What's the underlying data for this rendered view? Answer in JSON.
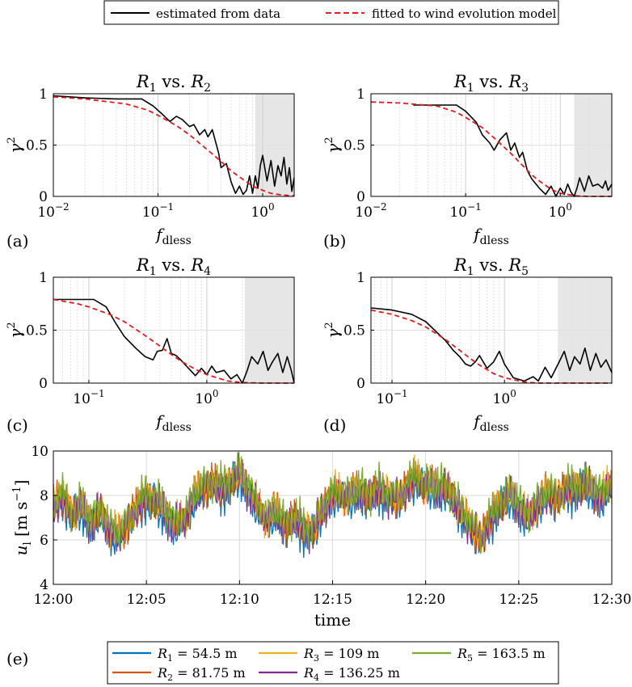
{
  "top_legend": {
    "items": [
      {
        "label": "estimated from data",
        "color": "#000000",
        "dash": "solid"
      },
      {
        "label": "fitted to wind evolution model",
        "color": "#e41a1c",
        "dash": "dashed"
      }
    ]
  },
  "panel_labels": [
    "(a)",
    "(b)",
    "(c)",
    "(d)",
    "(e)"
  ],
  "colors": {
    "estimated": "#000000",
    "fitted": "#e41a1c",
    "shade": "#e6e6e6",
    "grid": "#d9d9d9"
  },
  "chart_data": [
    {
      "id": "a",
      "type": "line",
      "title_main": "R",
      "title_sub1": "1",
      "title_mid": " vs. ",
      "title_main2": "R",
      "title_sub2": "2",
      "xlabel_main": "f",
      "xlabel_sub": "dless",
      "ylabel_main": "γ",
      "ylabel_sup": "2",
      "xscale": "log",
      "xlim": [
        0.01,
        2.0
      ],
      "ylim": [
        0,
        1
      ],
      "xtick_values": [
        0.01,
        0.1,
        1
      ],
      "xticks": [
        {
          "base": "10",
          "exp": "−2"
        },
        {
          "base": "10",
          "exp": "−1"
        },
        {
          "base": "10",
          "exp": "0"
        }
      ],
      "yticks": [
        "0",
        "0.5",
        "1"
      ],
      "ytick_values": [
        0,
        0.5,
        1
      ],
      "shaded_from": 0.85,
      "series": [
        {
          "name": "estimated from data",
          "x": [
            0.01,
            0.02,
            0.04,
            0.07,
            0.09,
            0.11,
            0.13,
            0.15,
            0.17,
            0.2,
            0.22,
            0.25,
            0.28,
            0.3,
            0.33,
            0.38,
            0.4,
            0.45,
            0.5,
            0.55,
            0.6,
            0.65,
            0.7,
            0.75,
            0.8,
            0.85,
            0.9,
            0.95,
            1.0,
            1.1,
            1.2,
            1.3,
            1.4,
            1.5,
            1.6,
            1.7,
            1.8,
            1.9,
            2.0
          ],
          "y": [
            0.98,
            0.96,
            0.95,
            0.95,
            0.88,
            0.8,
            0.73,
            0.78,
            0.75,
            0.68,
            0.7,
            0.6,
            0.65,
            0.58,
            0.65,
            0.42,
            0.28,
            0.32,
            0.14,
            0.03,
            0.1,
            0.02,
            0.06,
            0.2,
            0.03,
            0.2,
            0.08,
            0.3,
            0.4,
            0.15,
            0.35,
            0.1,
            0.3,
            0.2,
            0.38,
            0.12,
            0.28,
            0.05,
            0.18
          ]
        },
        {
          "name": "fitted to wind evolution model",
          "x": [
            0.01,
            0.02,
            0.05,
            0.08,
            0.1,
            0.15,
            0.2,
            0.3,
            0.4,
            0.5,
            0.6,
            0.8,
            1.0,
            1.2,
            1.5,
            2.0
          ],
          "y": [
            0.97,
            0.95,
            0.9,
            0.84,
            0.79,
            0.69,
            0.6,
            0.45,
            0.34,
            0.25,
            0.19,
            0.1,
            0.06,
            0.03,
            0.015,
            0.005
          ]
        }
      ]
    },
    {
      "id": "b",
      "type": "line",
      "title_main": "R",
      "title_sub1": "1",
      "title_mid": " vs. ",
      "title_main2": "R",
      "title_sub2": "3",
      "xlabel_main": "f",
      "xlabel_sub": "dless",
      "ylabel_main": "γ",
      "ylabel_sup": "2",
      "xscale": "log",
      "xlim": [
        0.01,
        3.5
      ],
      "ylim": [
        0,
        1
      ],
      "xtick_values": [
        0.01,
        0.1,
        1
      ],
      "xticks": [
        {
          "base": "10",
          "exp": "−2"
        },
        {
          "base": "10",
          "exp": "−1"
        },
        {
          "base": "10",
          "exp": "0"
        }
      ],
      "yticks": [
        "0",
        "0.5",
        "1"
      ],
      "ytick_values": [
        0,
        0.5,
        1
      ],
      "shaded_from": 1.4,
      "series": [
        {
          "name": "estimated from data",
          "x": [
            0.028,
            0.05,
            0.08,
            0.1,
            0.13,
            0.15,
            0.18,
            0.2,
            0.23,
            0.27,
            0.3,
            0.33,
            0.37,
            0.4,
            0.45,
            0.5,
            0.6,
            0.7,
            0.8,
            0.9,
            1.0,
            1.1,
            1.2,
            1.3,
            1.4,
            1.5,
            1.6,
            1.8,
            2.0,
            2.2,
            2.5,
            2.8,
            3.0,
            3.2,
            3.5
          ],
          "y": [
            0.89,
            0.89,
            0.89,
            0.83,
            0.72,
            0.6,
            0.52,
            0.45,
            0.55,
            0.62,
            0.45,
            0.52,
            0.38,
            0.43,
            0.25,
            0.17,
            0.08,
            0.02,
            0.1,
            0.0,
            0.08,
            0.02,
            0.12,
            0.04,
            0.0,
            0.08,
            0.18,
            0.05,
            0.2,
            0.1,
            0.12,
            0.08,
            0.15,
            0.06,
            0.12
          ]
        },
        {
          "name": "fitted to wind evolution model",
          "x": [
            0.01,
            0.02,
            0.05,
            0.08,
            0.1,
            0.15,
            0.2,
            0.3,
            0.4,
            0.5,
            0.6,
            0.8,
            1.0,
            1.5,
            2.0,
            3.5
          ],
          "y": [
            0.92,
            0.91,
            0.88,
            0.82,
            0.77,
            0.67,
            0.57,
            0.42,
            0.3,
            0.21,
            0.15,
            0.07,
            0.03,
            0.005,
            0.0,
            0.0
          ]
        }
      ]
    },
    {
      "id": "c",
      "type": "line",
      "title_main": "R",
      "title_sub1": "1",
      "title_mid": " vs. ",
      "title_main2": "R",
      "title_sub2": "4",
      "xlabel_main": "f",
      "xlabel_sub": "dless",
      "ylabel_main": "γ",
      "ylabel_sup": "2",
      "xscale": "log",
      "xlim": [
        0.05,
        5.5
      ],
      "ylim": [
        0,
        1
      ],
      "xtick_values": [
        0.1,
        1
      ],
      "xticks": [
        {
          "base": "10",
          "exp": "−1"
        },
        {
          "base": "10",
          "exp": "0"
        }
      ],
      "yticks": [
        "0",
        "0.5",
        "1"
      ],
      "ytick_values": [
        0,
        0.5,
        1
      ],
      "shaded_from": 2.1,
      "series": [
        {
          "name": "estimated from data",
          "x": [
            0.05,
            0.08,
            0.11,
            0.14,
            0.17,
            0.2,
            0.25,
            0.3,
            0.35,
            0.38,
            0.42,
            0.46,
            0.5,
            0.55,
            0.6,
            0.7,
            0.8,
            0.9,
            1.0,
            1.1,
            1.2,
            1.4,
            1.6,
            1.8,
            2.0,
            2.2,
            2.4,
            2.7,
            3.0,
            3.3,
            3.6,
            4.0,
            4.4,
            4.8,
            5.2,
            5.5
          ],
          "y": [
            0.79,
            0.79,
            0.79,
            0.72,
            0.56,
            0.44,
            0.33,
            0.25,
            0.22,
            0.3,
            0.31,
            0.42,
            0.28,
            0.26,
            0.22,
            0.14,
            0.07,
            0.14,
            0.08,
            0.16,
            0.1,
            0.12,
            0.04,
            0.08,
            0.0,
            0.12,
            0.25,
            0.18,
            0.3,
            0.12,
            0.2,
            0.28,
            0.1,
            0.25,
            0.12,
            0.0
          ]
        },
        {
          "name": "fitted to wind evolution model",
          "x": [
            0.05,
            0.08,
            0.1,
            0.15,
            0.2,
            0.3,
            0.4,
            0.5,
            0.6,
            0.8,
            1.0,
            1.5,
            2.0,
            3.0,
            5.5
          ],
          "y": [
            0.79,
            0.75,
            0.72,
            0.65,
            0.58,
            0.45,
            0.35,
            0.27,
            0.21,
            0.13,
            0.08,
            0.02,
            0.005,
            0.0,
            0.0
          ]
        }
      ]
    },
    {
      "id": "d",
      "type": "line",
      "title_main": "R",
      "title_sub1": "1",
      "title_mid": " vs. ",
      "title_main2": "R",
      "title_sub2": "5",
      "xlabel_main": "f",
      "xlabel_sub": "dless",
      "ylabel_main": "γ",
      "ylabel_sup": "2",
      "xscale": "log",
      "xlim": [
        0.065,
        9.0
      ],
      "ylim": [
        0,
        1
      ],
      "xtick_values": [
        0.1,
        1
      ],
      "xticks": [
        {
          "base": "10",
          "exp": "−1"
        },
        {
          "base": "10",
          "exp": "0"
        }
      ],
      "yticks": [
        "0",
        "0.5",
        "1"
      ],
      "ytick_values": [
        0,
        0.5,
        1
      ],
      "shaded_from": 3.0,
      "series": [
        {
          "name": "estimated from data",
          "x": [
            0.065,
            0.1,
            0.15,
            0.2,
            0.25,
            0.3,
            0.35,
            0.4,
            0.45,
            0.5,
            0.55,
            0.6,
            0.7,
            0.8,
            0.9,
            1.0,
            1.2,
            1.5,
            1.8,
            2.0,
            2.3,
            2.6,
            3.0,
            3.4,
            3.8,
            4.2,
            4.7,
            5.2,
            5.8,
            6.5,
            7.2,
            8.0,
            9.0
          ],
          "y": [
            0.71,
            0.69,
            0.65,
            0.58,
            0.48,
            0.4,
            0.31,
            0.25,
            0.18,
            0.16,
            0.2,
            0.26,
            0.14,
            0.2,
            0.3,
            0.18,
            0.05,
            0.02,
            0.06,
            0.02,
            0.15,
            0.05,
            0.18,
            0.3,
            0.12,
            0.25,
            0.18,
            0.33,
            0.12,
            0.28,
            0.15,
            0.22,
            0.1
          ]
        },
        {
          "name": "fitted to wind evolution model",
          "x": [
            0.065,
            0.1,
            0.15,
            0.2,
            0.3,
            0.4,
            0.5,
            0.6,
            0.8,
            1.0,
            1.5,
            2.0,
            3.0,
            9.0
          ],
          "y": [
            0.69,
            0.65,
            0.59,
            0.53,
            0.41,
            0.31,
            0.23,
            0.17,
            0.09,
            0.05,
            0.01,
            0.0,
            0.0,
            0.0
          ]
        }
      ]
    },
    {
      "id": "e",
      "type": "line",
      "xlabel": "time",
      "ylabel_main": "u",
      "ylabel_sub": "l",
      "ylabel_unit": " [m s",
      "ylabel_sup": "−1",
      "ylabel_end": "]",
      "xlim": [
        0,
        30
      ],
      "ylim": [
        4,
        10
      ],
      "x_unit": "minutes after 12:00",
      "xticks": [
        "12:00",
        "12:05",
        "12:10",
        "12:15",
        "12:20",
        "12:25",
        "12:30"
      ],
      "xtick_values": [
        0,
        5,
        10,
        15,
        20,
        25,
        30
      ],
      "yticks": [
        "4",
        "6",
        "8",
        "10"
      ],
      "ytick_values": [
        4,
        6,
        8,
        10
      ],
      "base_series": {
        "x": [
          0,
          0.5,
          1,
          1.5,
          2,
          2.5,
          3,
          3.5,
          4,
          4.5,
          5,
          5.5,
          6,
          6.5,
          7,
          7.5,
          8,
          8.5,
          9,
          9.5,
          10,
          10.5,
          11,
          11.5,
          12,
          12.5,
          13,
          13.5,
          14,
          14.5,
          15,
          15.5,
          16,
          16.5,
          17,
          17.5,
          18,
          18.5,
          19,
          19.5,
          20,
          20.5,
          21,
          21.5,
          22,
          22.5,
          23,
          23.5,
          24,
          24.5,
          25,
          25.5,
          26,
          26.5,
          27,
          27.5,
          28,
          28.5,
          29,
          29.5,
          30
        ],
        "y": [
          7.6,
          7.9,
          7.2,
          7.5,
          6.8,
          7.3,
          6.5,
          6.2,
          6.8,
          7.4,
          8.0,
          7.7,
          7.3,
          6.7,
          6.9,
          7.8,
          8.4,
          8.5,
          8.3,
          8.6,
          9.0,
          8.3,
          7.4,
          7.0,
          7.2,
          6.7,
          6.9,
          6.5,
          6.4,
          7.5,
          8.0,
          8.1,
          7.9,
          8.3,
          7.9,
          8.3,
          8.0,
          7.8,
          8.4,
          8.8,
          8.5,
          8.3,
          8.5,
          7.8,
          7.2,
          6.5,
          6.1,
          6.9,
          7.7,
          8.0,
          7.6,
          7.0,
          7.6,
          8.1,
          7.9,
          8.2,
          8.3,
          8.6,
          8.2,
          8.0,
          8.5
        ]
      },
      "series": [
        {
          "name": "R1 = 54.5 m",
          "name_main": "R",
          "name_sub": "1",
          "name_rest": " = 54.5 m",
          "color": "#0072bd",
          "offset": -0.25
        },
        {
          "name": "R2 = 81.75 m",
          "name_main": "R",
          "name_sub": "2",
          "name_rest": " = 81.75 m",
          "color": "#d95319",
          "offset": 0.0
        },
        {
          "name": "R3 = 109 m",
          "name_main": "R",
          "name_sub": "3",
          "name_rest": " = 109 m",
          "color": "#edb120",
          "offset": 0.05
        },
        {
          "name": "R4 = 136.25 m",
          "name_main": "R",
          "name_sub": "4",
          "name_rest": " = 136.25 m",
          "color": "#7e2f8e",
          "offset": -0.05
        },
        {
          "name": "R5 = 163.5 m",
          "name_main": "R",
          "name_sub": "5",
          "name_rest": " = 163.5 m",
          "color": "#77ac30",
          "offset": 0.15
        }
      ]
    }
  ]
}
